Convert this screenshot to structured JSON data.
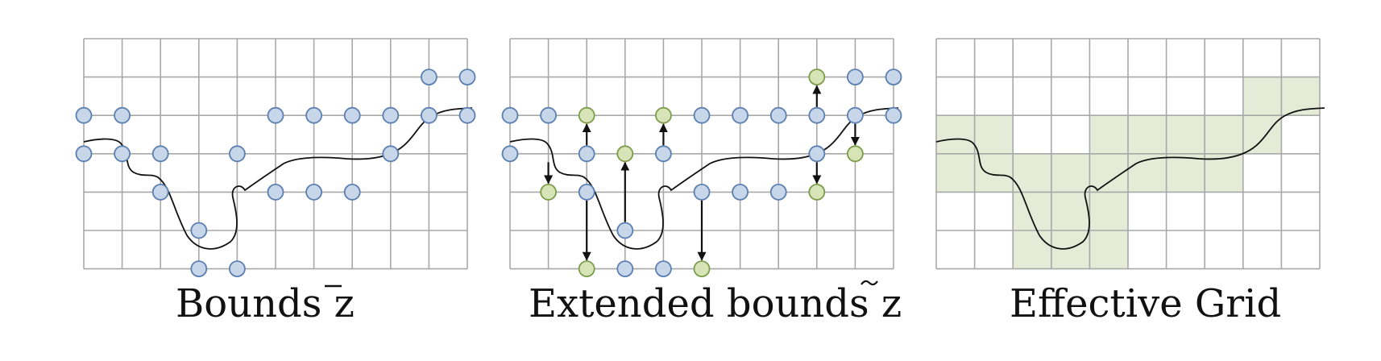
{
  "figure": {
    "grid": {
      "columns": 10,
      "rows": 6
    },
    "colors": {
      "grid_line": "#a8a8a8",
      "node_blue_fill": "#c8d6ea",
      "node_blue_stroke": "#5a7fb0",
      "node_green_fill": "#d7e4b8",
      "node_green_stroke": "#7d9c4a",
      "effective_cell": "#e6ebd8",
      "curve": "#111111"
    },
    "panels": [
      {
        "id": "bounds",
        "caption": "Bounds z",
        "caption_accent": "overline",
        "blue_nodes": [
          [
            9,
            1
          ],
          [
            10,
            1
          ],
          [
            0,
            2
          ],
          [
            1,
            2
          ],
          [
            5,
            2
          ],
          [
            6,
            2
          ],
          [
            7,
            2
          ],
          [
            8,
            2
          ],
          [
            9,
            2
          ],
          [
            10,
            2
          ],
          [
            0,
            3
          ],
          [
            1,
            3
          ],
          [
            2,
            3
          ],
          [
            4,
            3
          ],
          [
            8,
            3
          ],
          [
            2,
            4
          ],
          [
            5,
            4
          ],
          [
            6,
            4
          ],
          [
            7,
            4
          ],
          [
            3,
            5
          ],
          [
            3,
            6
          ],
          [
            4,
            6
          ]
        ],
        "green_nodes": [],
        "arrows": []
      },
      {
        "id": "extended-bounds",
        "caption": "Extended bounds z",
        "caption_accent": "tilde",
        "blue_nodes": [
          [
            9,
            1
          ],
          [
            10,
            1
          ],
          [
            0,
            2
          ],
          [
            1,
            2
          ],
          [
            5,
            2
          ],
          [
            6,
            2
          ],
          [
            7,
            2
          ],
          [
            8,
            2
          ],
          [
            9,
            2
          ],
          [
            10,
            2
          ],
          [
            0,
            3
          ],
          [
            2,
            3
          ],
          [
            4,
            3
          ],
          [
            8,
            3
          ],
          [
            2,
            4
          ],
          [
            5,
            4
          ],
          [
            6,
            4
          ],
          [
            7,
            4
          ],
          [
            3,
            5
          ],
          [
            3,
            6
          ],
          [
            4,
            6
          ]
        ],
        "green_nodes": [
          [
            8,
            1
          ],
          [
            2,
            2
          ],
          [
            4,
            2
          ],
          [
            3,
            3
          ],
          [
            9,
            3
          ],
          [
            1,
            4
          ],
          [
            8,
            4
          ],
          [
            2,
            6
          ],
          [
            5,
            6
          ]
        ],
        "arrows": [
          [
            2,
            3,
            2,
            2
          ],
          [
            4,
            3,
            4,
            2
          ],
          [
            8,
            2,
            8,
            1
          ],
          [
            9,
            2,
            9,
            3
          ],
          [
            8,
            3,
            8,
            4
          ],
          [
            1,
            3,
            1,
            4
          ],
          [
            2,
            4,
            2,
            6
          ],
          [
            5,
            4,
            5,
            6
          ],
          [
            3,
            5,
            3,
            3
          ]
        ]
      },
      {
        "id": "effective-grid",
        "caption": "Effective Grid",
        "caption_accent": "none",
        "filled_cells": [
          [
            8,
            1
          ],
          [
            9,
            1
          ],
          [
            0,
            2
          ],
          [
            1,
            2
          ],
          [
            4,
            2
          ],
          [
            5,
            2
          ],
          [
            6,
            2
          ],
          [
            7,
            2
          ],
          [
            8,
            2
          ],
          [
            0,
            3
          ],
          [
            1,
            3
          ],
          [
            2,
            3
          ],
          [
            3,
            3
          ],
          [
            4,
            3
          ],
          [
            5,
            3
          ],
          [
            6,
            3
          ],
          [
            7,
            3
          ],
          [
            2,
            4
          ],
          [
            3,
            4
          ],
          [
            4,
            4
          ],
          [
            2,
            5
          ],
          [
            3,
            5
          ],
          [
            4,
            5
          ]
        ]
      }
    ]
  }
}
